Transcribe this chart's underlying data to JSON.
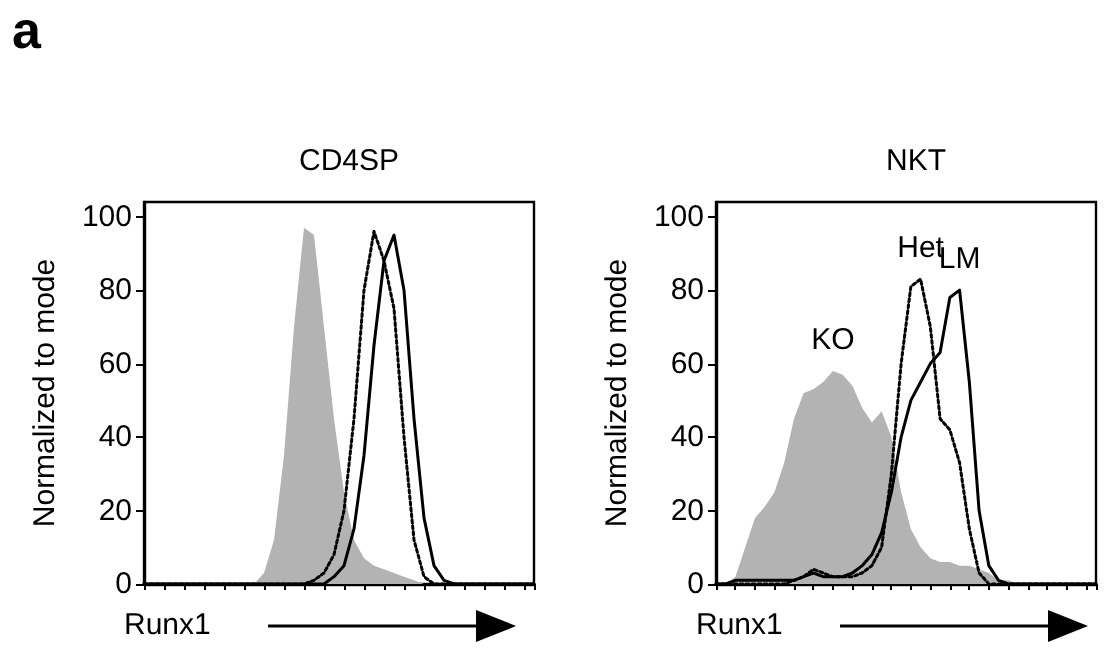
{
  "chart_data": [
    {
      "type": "line",
      "title": "CD4SP",
      "xlabel": "Runx1",
      "ylabel": "Normalized to mode",
      "annotations": [
        "a"
      ],
      "categories": [
        null,
        null,
        null,
        null,
        null,
        null,
        null,
        null,
        null,
        null,
        null,
        null,
        null,
        null,
        null,
        null,
        null,
        null,
        null,
        null,
        null,
        null,
        null,
        null,
        null,
        null,
        null,
        null,
        null,
        null,
        null,
        null,
        null,
        null,
        null,
        null,
        null,
        null,
        null,
        null
      ],
      "series": [
        {
          "type": "area",
          "color": "#b3b3b3",
          "values": [
            0,
            0,
            0,
            0,
            0,
            0,
            0,
            0,
            0,
            0,
            0,
            0,
            3,
            12,
            35,
            70,
            97,
            95,
            70,
            45,
            25,
            12,
            7,
            5,
            4,
            3,
            2,
            1,
            0,
            0,
            0,
            0,
            0,
            0,
            0,
            0,
            0,
            0,
            0,
            0
          ]
        },
        {
          "color": "#000000",
          "line_style": "dotted",
          "values": [
            0,
            0,
            0,
            0,
            0,
            0,
            0,
            0,
            0,
            0,
            0,
            0,
            0,
            0,
            0,
            0,
            0,
            1,
            3,
            8,
            20,
            45,
            80,
            96,
            88,
            75,
            40,
            12,
            2,
            0,
            0,
            0,
            0,
            0,
            0,
            0,
            0,
            0,
            0,
            0
          ]
        },
        {
          "color": "#000000",
          "line_style": "solid",
          "values": [
            0,
            0,
            0,
            0,
            0,
            0,
            0,
            0,
            0,
            0,
            0,
            0,
            0,
            0,
            0,
            0,
            0,
            0,
            0,
            2,
            5,
            15,
            35,
            65,
            88,
            95,
            80,
            45,
            18,
            5,
            1,
            0,
            0,
            0,
            0,
            0,
            0,
            0,
            0,
            0
          ]
        }
      ],
      "ylim": [
        0,
        104
      ],
      "yticks": [
        0,
        20,
        40,
        60,
        80,
        100
      ],
      "tick_labels": "y",
      "legend": false,
      "grid": false
    },
    {
      "type": "line",
      "title": "NKT",
      "xlabel": "Runx1",
      "ylabel": "Normalized to mode",
      "categories": [
        null,
        null,
        null,
        null,
        null,
        null,
        null,
        null,
        null,
        null,
        null,
        null,
        null,
        null,
        null,
        null,
        null,
        null,
        null,
        null,
        null,
        null,
        null,
        null,
        null,
        null,
        null,
        null,
        null,
        null,
        null,
        null,
        null,
        null,
        null,
        null,
        null,
        null,
        null,
        null
      ],
      "series": [
        {
          "type": "area",
          "name": "KO",
          "color": "#b3b3b3",
          "values": [
            0,
            0,
            2,
            10,
            18,
            21,
            25,
            33,
            45,
            52,
            53,
            55,
            58,
            57,
            54,
            48,
            44,
            47,
            40,
            25,
            15,
            10,
            7,
            6,
            6,
            5,
            5,
            4,
            3,
            1,
            1,
            0,
            0,
            0,
            0,
            0,
            0,
            0,
            0,
            0
          ]
        },
        {
          "name": "Het",
          "color": "#000000",
          "line_style": "dotted",
          "values": [
            0,
            0,
            0,
            0,
            0,
            0,
            0,
            0,
            1,
            2,
            4,
            3,
            2,
            2,
            2,
            3,
            5,
            10,
            30,
            60,
            81,
            83,
            70,
            45,
            42,
            33,
            15,
            3,
            0,
            0,
            0,
            0,
            0,
            0,
            0,
            0,
            0,
            0,
            0,
            0
          ]
        },
        {
          "name": "LM",
          "color": "#000000",
          "line_style": "solid",
          "values": [
            0,
            0,
            1,
            1,
            1,
            1,
            1,
            1,
            1,
            2,
            3,
            2,
            2,
            2,
            3,
            5,
            8,
            14,
            25,
            40,
            50,
            55,
            60,
            63,
            78,
            80,
            55,
            20,
            5,
            1,
            0,
            0,
            0,
            0,
            0,
            0,
            0,
            0,
            0,
            0
          ]
        }
      ],
      "ylim": [
        0,
        104
      ],
      "yticks": [
        0,
        20,
        40,
        60,
        80,
        100
      ],
      "tick_labels": "y",
      "legend": false,
      "grid": false
    }
  ]
}
